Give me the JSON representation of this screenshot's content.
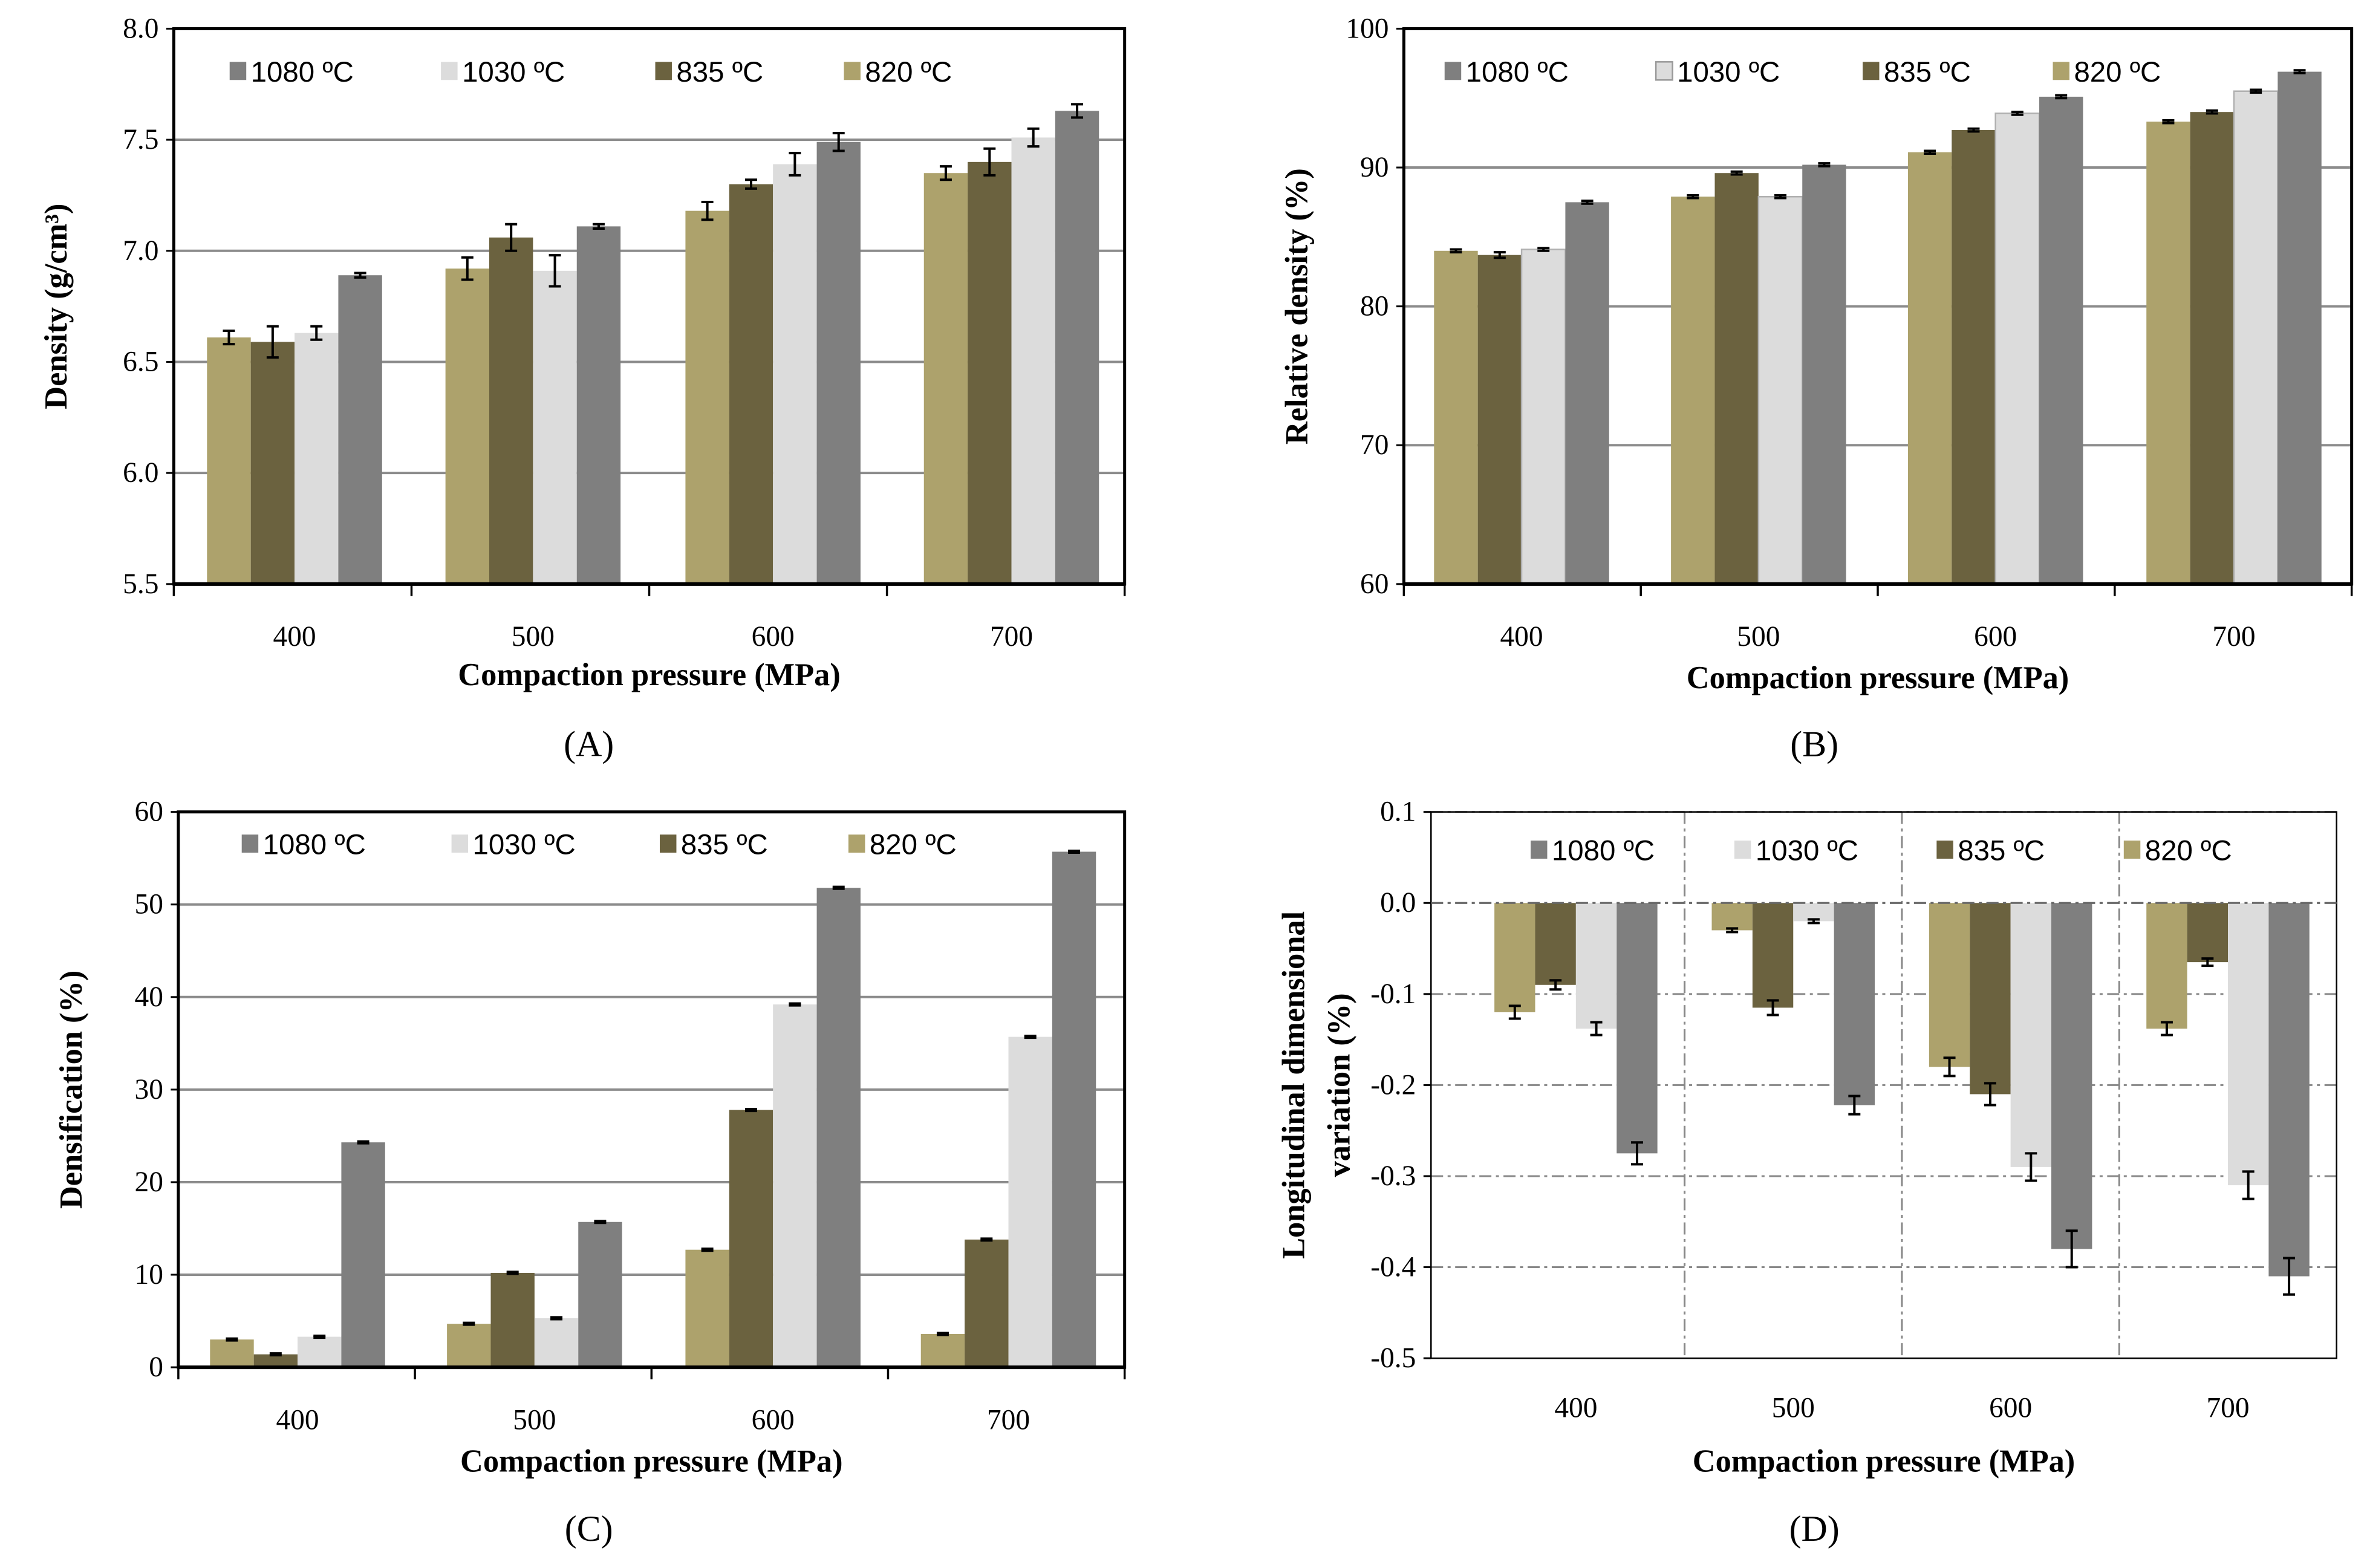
{
  "legend_order": [
    "1080 ºC",
    "1030 ºC",
    "835 ºC",
    "820 ºC"
  ],
  "colors": {
    "820 ºC": "#ada26c",
    "835 ºC": "#6b623f",
    "1030 ºC": "#dcdcdc",
    "1080 ºC": "#7f7f7f"
  },
  "chart_data": [
    {
      "type": "bar",
      "panel": "(A)",
      "xlabel": "Compaction pressure (MPa)",
      "ylabel": "Density (g/cm³)",
      "ylim": [
        5.5,
        8.0
      ],
      "yticks": [
        "5.5",
        "6.0",
        "6.5",
        "7.0",
        "7.5",
        "8.0"
      ],
      "ytick_values": [
        5.5,
        6.0,
        6.5,
        7.0,
        7.5,
        8.0
      ],
      "categories": [
        "400",
        "500",
        "600",
        "700"
      ],
      "series": [
        {
          "name": "820 ºC",
          "values": [
            6.61,
            6.92,
            7.18,
            7.35
          ],
          "errors": [
            0.03,
            0.05,
            0.04,
            0.03
          ]
        },
        {
          "name": "835 ºC",
          "values": [
            6.59,
            7.06,
            7.3,
            7.4
          ],
          "errors": [
            0.07,
            0.06,
            0.02,
            0.06
          ]
        },
        {
          "name": "1030 ºC",
          "values": [
            6.63,
            6.91,
            7.39,
            7.51
          ],
          "errors": [
            0.03,
            0.07,
            0.05,
            0.04
          ]
        },
        {
          "name": "1080 ºC",
          "values": [
            6.89,
            7.11,
            7.49,
            7.63
          ],
          "errors": [
            0.01,
            0.01,
            0.04,
            0.03
          ]
        }
      ]
    },
    {
      "type": "bar",
      "panel": "(B)",
      "xlabel": "Compaction pressure (MPa)",
      "ylabel": "Relative density (%)",
      "ylim": [
        60,
        100
      ],
      "yticks": [
        "60",
        "70",
        "80",
        "90",
        "100"
      ],
      "ytick_values": [
        60,
        70,
        80,
        90,
        100
      ],
      "categories": [
        "400",
        "500",
        "600",
        "700"
      ],
      "series": [
        {
          "name": "820 ºC",
          "values": [
            84.0,
            87.9,
            91.1,
            93.3
          ],
          "errors": [
            0.1,
            0.1,
            0.1,
            0.1
          ]
        },
        {
          "name": "835 ºC",
          "values": [
            83.7,
            89.6,
            92.7,
            94.0
          ],
          "errors": [
            0.2,
            0.1,
            0.1,
            0.1
          ]
        },
        {
          "name": "1030 ºC",
          "values": [
            84.1,
            87.9,
            93.9,
            95.5
          ],
          "errors": [
            0.1,
            0.1,
            0.1,
            0.1
          ]
        },
        {
          "name": "1080 ºC",
          "values": [
            87.5,
            90.2,
            95.1,
            96.9
          ],
          "errors": [
            0.1,
            0.1,
            0.1,
            0.1
          ]
        }
      ]
    },
    {
      "type": "bar",
      "panel": "(C)",
      "xlabel": "Compaction pressure (MPa)",
      "ylabel": "Densification (%)",
      "ylim": [
        0,
        60
      ],
      "yticks": [
        "0",
        "10",
        "20",
        "30",
        "40",
        "50",
        "60"
      ],
      "ytick_values": [
        0,
        10,
        20,
        30,
        40,
        50,
        60
      ],
      "categories": [
        "400",
        "500",
        "600",
        "700"
      ],
      "series": [
        {
          "name": "820 ºC",
          "values": [
            3.0,
            4.7,
            12.7,
            3.6
          ],
          "errors": [
            0.1,
            0.1,
            0.1,
            0.1
          ]
        },
        {
          "name": "835 ºC",
          "values": [
            1.4,
            10.2,
            27.8,
            13.8
          ],
          "errors": [
            0.1,
            0.1,
            0.1,
            0.1
          ]
        },
        {
          "name": "1030 ºC",
          "values": [
            3.3,
            5.3,
            39.2,
            35.7
          ],
          "errors": [
            0.1,
            0.1,
            0.1,
            0.1
          ]
        },
        {
          "name": "1080 ºC",
          "values": [
            24.3,
            15.7,
            51.8,
            55.7
          ],
          "errors": [
            0.1,
            0.1,
            0.1,
            0.1
          ]
        }
      ]
    },
    {
      "type": "bar",
      "panel": "(D)",
      "xlabel": "Compaction pressure (MPa)",
      "ylabel": [
        "Longitudinal  dimensional",
        "variation (%)"
      ],
      "ylim": [
        -0.5,
        0.1
      ],
      "yticks": [
        "-0.5",
        "-0.4",
        "-0.3",
        "-0.2",
        "-0.1",
        "0.0",
        "0.1"
      ],
      "ytick_values": [
        -0.5,
        -0.4,
        -0.3,
        -0.2,
        -0.1,
        0.0,
        0.1
      ],
      "categories": [
        "400",
        "500",
        "600",
        "700"
      ],
      "series": [
        {
          "name": "820 ºC",
          "values": [
            -0.12,
            -0.03,
            -0.18,
            -0.138
          ],
          "errors": [
            0.007,
            0.002,
            0.01,
            0.007
          ]
        },
        {
          "name": "835 ºC",
          "values": [
            -0.09,
            -0.115,
            -0.21,
            -0.065
          ],
          "errors": [
            0.005,
            0.008,
            0.012,
            0.004
          ]
        },
        {
          "name": "1030 ºC",
          "values": [
            -0.138,
            -0.02,
            -0.29,
            -0.31
          ],
          "errors": [
            0.007,
            0.002,
            0.015,
            0.015
          ]
        },
        {
          "name": "1080 ºC",
          "values": [
            -0.275,
            -0.222,
            -0.38,
            -0.41
          ],
          "errors": [
            0.012,
            0.01,
            0.02,
            0.02
          ]
        }
      ]
    }
  ]
}
